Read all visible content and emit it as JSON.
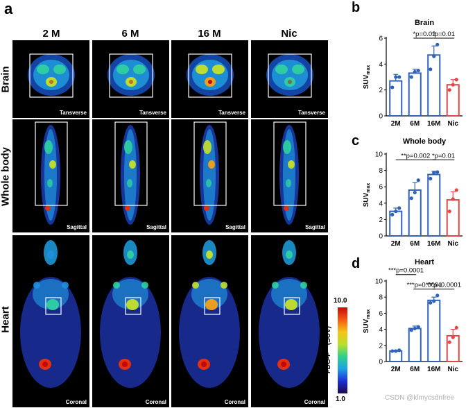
{
  "panel_a": {
    "letter": "a",
    "columns": [
      "2 M",
      "6 M",
      "16 M",
      "Nic"
    ],
    "rows": [
      "Brain",
      "Whole body",
      "Heart"
    ],
    "view_labels": {
      "brain": "Tansverse",
      "body": "Sagittal",
      "heart": "Coronal"
    },
    "colorbar": {
      "max": "10.0",
      "min": "1.0",
      "label": "FDG-F",
      "label_sup": "18",
      "label_suffix": " (SUV)",
      "colors": [
        "#1a0a4a",
        "#1d2fd6",
        "#1fa0e6",
        "#2fd08a",
        "#b9e02a",
        "#f5c518",
        "#f25a12",
        "#c80a0a"
      ]
    }
  },
  "chart_data": [
    {
      "panel": "b",
      "type": "bar",
      "title": "Brain",
      "ylabel": "SUV",
      "ylabel_sub": "max",
      "ylim": [
        0,
        6
      ],
      "yticks": [
        0,
        2,
        4,
        6
      ],
      "categories": [
        "2M",
        "6M",
        "16M",
        "Nic"
      ],
      "values": [
        2.7,
        3.3,
        4.7,
        2.4
      ],
      "errors": [
        0.5,
        0.3,
        0.7,
        0.4
      ],
      "points": [
        [
          2.2,
          3.0,
          3.0
        ],
        [
          3.0,
          3.4,
          3.5
        ],
        [
          3.6,
          4.6,
          5.5
        ],
        [
          2.0,
          2.4,
          2.8
        ]
      ],
      "colors": [
        "#2f62b8",
        "#2f62b8",
        "#2f62b8",
        "#e04848"
      ],
      "annotations": [
        {
          "text": "*p=0.02",
          "from": 1,
          "to": 2,
          "level": 6.0
        },
        {
          "text": "*p=0.01",
          "from": 2,
          "to": 3,
          "level": 6.0
        }
      ]
    },
    {
      "panel": "c",
      "type": "bar",
      "title": "Whole body",
      "ylabel": "SUV",
      "ylabel_sub": "max",
      "ylim": [
        0,
        10
      ],
      "yticks": [
        0,
        2,
        4,
        6,
        8,
        10
      ],
      "categories": [
        "2M",
        "6M",
        "16M",
        "Nic"
      ],
      "values": [
        3.0,
        5.6,
        7.5,
        4.4
      ],
      "errors": [
        0.4,
        0.9,
        0.4,
        1.0
      ],
      "points": [
        [
          2.6,
          3.0,
          3.4
        ],
        [
          4.6,
          5.3,
          6.8
        ],
        [
          7.0,
          7.7,
          7.8
        ],
        [
          3.0,
          4.5,
          5.6
        ]
      ],
      "colors": [
        "#2f62b8",
        "#2f62b8",
        "#2f62b8",
        "#e04848"
      ],
      "annotations": [
        {
          "text": "**p=0.002",
          "from": 0,
          "to": 2,
          "level": 9.3
        },
        {
          "text": "*p=0.01",
          "from": 2,
          "to": 3,
          "level": 9.3
        }
      ]
    },
    {
      "panel": "d",
      "type": "bar",
      "title": "Heart",
      "ylabel": "SUV",
      "ylabel_sub": "max",
      "ylim": [
        0,
        10
      ],
      "yticks": [
        0,
        2,
        4,
        6,
        8,
        10
      ],
      "categories": [
        "2M",
        "6M",
        "16M",
        "Nic"
      ],
      "values": [
        1.3,
        4.1,
        7.6,
        3.2
      ],
      "errors": [
        0.1,
        0.3,
        0.4,
        0.8
      ],
      "points": [
        [
          1.3,
          1.3,
          1.4
        ],
        [
          3.9,
          4.1,
          4.3
        ],
        [
          7.3,
          7.5,
          8.2
        ],
        [
          2.4,
          3.0,
          4.2
        ]
      ],
      "colors": [
        "#2f62b8",
        "#2f62b8",
        "#2f62b8",
        "#e04848"
      ],
      "annotations": [
        {
          "text": "***p=0.0001",
          "from": 0,
          "to": 1,
          "level": 10.8
        },
        {
          "text": "***p=0.0001",
          "from": 1,
          "to": 2,
          "level": 9.0
        },
        {
          "text": "***p=0.0001",
          "from": 2,
          "to": 3,
          "level": 9.0
        }
      ]
    }
  ],
  "watermark": "CSDN @klmycsdnfree"
}
